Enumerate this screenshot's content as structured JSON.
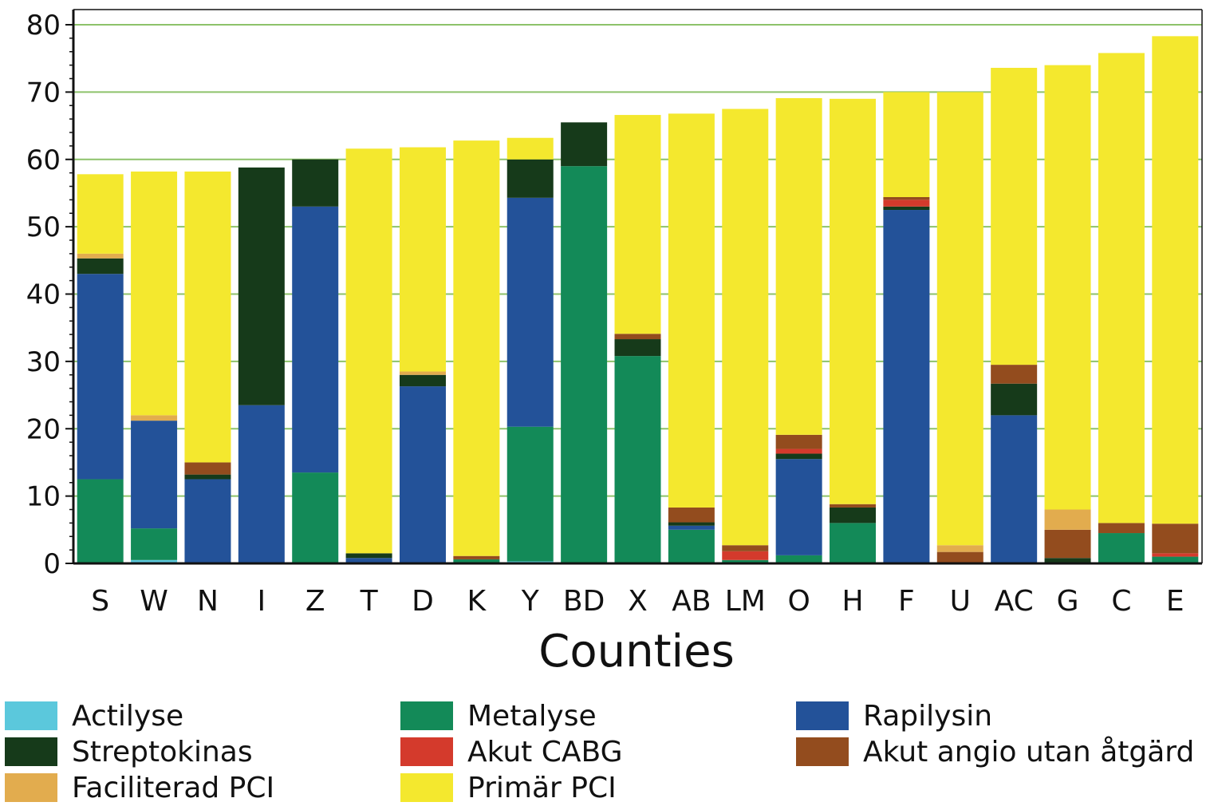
{
  "chart_data": {
    "type": "bar",
    "stacked": true,
    "title": "",
    "xlabel": "Counties",
    "ylabel": "",
    "ylim": [
      0,
      80
    ],
    "yticks": [
      0,
      10,
      20,
      30,
      40,
      50,
      60,
      70,
      80
    ],
    "grid": "horizontal",
    "gridline_color": "#8dc26a",
    "legend_position": "bottom",
    "categories": [
      "S",
      "W",
      "N",
      "I",
      "Z",
      "T",
      "D",
      "K",
      "Y",
      "BD",
      "X",
      "AB",
      "LM",
      "O",
      "H",
      "F",
      "U",
      "AC",
      "G",
      "C",
      "E"
    ],
    "series": [
      {
        "name": "Actilyse",
        "color": "#5bc8dc",
        "values": [
          0,
          0.5,
          0,
          0,
          0,
          0,
          0,
          0,
          0.3,
          0,
          0,
          0,
          0,
          0,
          0,
          0,
          0,
          0,
          0,
          0,
          0
        ]
      },
      {
        "name": "Metalyse",
        "color": "#138a58",
        "values": [
          12.5,
          4.7,
          0,
          0,
          13.5,
          0,
          0,
          0.6,
          20,
          59,
          30.8,
          5,
          0.5,
          1.2,
          6,
          0,
          0,
          0,
          0,
          4.5,
          1
        ]
      },
      {
        "name": "Rapilysin",
        "color": "#235299",
        "values": [
          30.5,
          16,
          12.5,
          23.5,
          39.5,
          0.8,
          26.3,
          0,
          34,
          0,
          0,
          0.6,
          0,
          14.3,
          0,
          52.5,
          0,
          22,
          0,
          0,
          0
        ]
      },
      {
        "name": "Streptokinas",
        "color": "#163a1a",
        "values": [
          2.3,
          0,
          0.7,
          35.3,
          7,
          0.7,
          1.7,
          0,
          5.7,
          6.5,
          2.5,
          0.5,
          0,
          0.8,
          2.3,
          0.5,
          0,
          4.7,
          0.8,
          0,
          0
        ]
      },
      {
        "name": "Akut CABG",
        "color": "#d43a2c",
        "values": [
          0,
          0,
          0,
          0,
          0,
          0,
          0,
          0,
          0,
          0,
          0,
          0,
          1.3,
          0.7,
          0,
          1,
          0,
          0,
          0,
          0,
          0.5
        ]
      },
      {
        "name": "Akut angio utan åtgärd",
        "color": "#934c1e",
        "values": [
          0,
          0,
          1.8,
          0,
          0,
          0,
          0,
          0.5,
          0,
          0,
          0.8,
          2.2,
          0.9,
          2.1,
          0.5,
          0.4,
          1.7,
          2.8,
          4.2,
          1.5,
          4.4
        ]
      },
      {
        "name": "Faciliterad PCI",
        "color": "#e2ac4e",
        "values": [
          0.7,
          0.8,
          0,
          0,
          0,
          0,
          0.5,
          0,
          0,
          0,
          0,
          0,
          0,
          0,
          0,
          0,
          1,
          0,
          3,
          0,
          0
        ]
      },
      {
        "name": "Primär PCI",
        "color": "#f4e82e",
        "values": [
          11.8,
          36.2,
          43.2,
          0,
          0,
          60.1,
          33.3,
          61.7,
          3.2,
          0,
          32.5,
          58.5,
          64.8,
          50,
          60.2,
          15.6,
          67.3,
          44.1,
          66,
          69.8,
          72.4
        ]
      }
    ]
  },
  "legend": {
    "items": [
      {
        "label": "Actilyse",
        "color": "#5bc8dc"
      },
      {
        "label": "Metalyse",
        "color": "#138a58"
      },
      {
        "label": "Rapilysin",
        "color": "#235299"
      },
      {
        "label": "Streptokinas",
        "color": "#163a1a"
      },
      {
        "label": "Akut CABG",
        "color": "#d43a2c"
      },
      {
        "label": "Akut angio utan åtgärd",
        "color": "#934c1e"
      },
      {
        "label": "Faciliterad PCI",
        "color": "#e2ac4e"
      },
      {
        "label": "Primär PCI",
        "color": "#f4e82e"
      }
    ]
  }
}
